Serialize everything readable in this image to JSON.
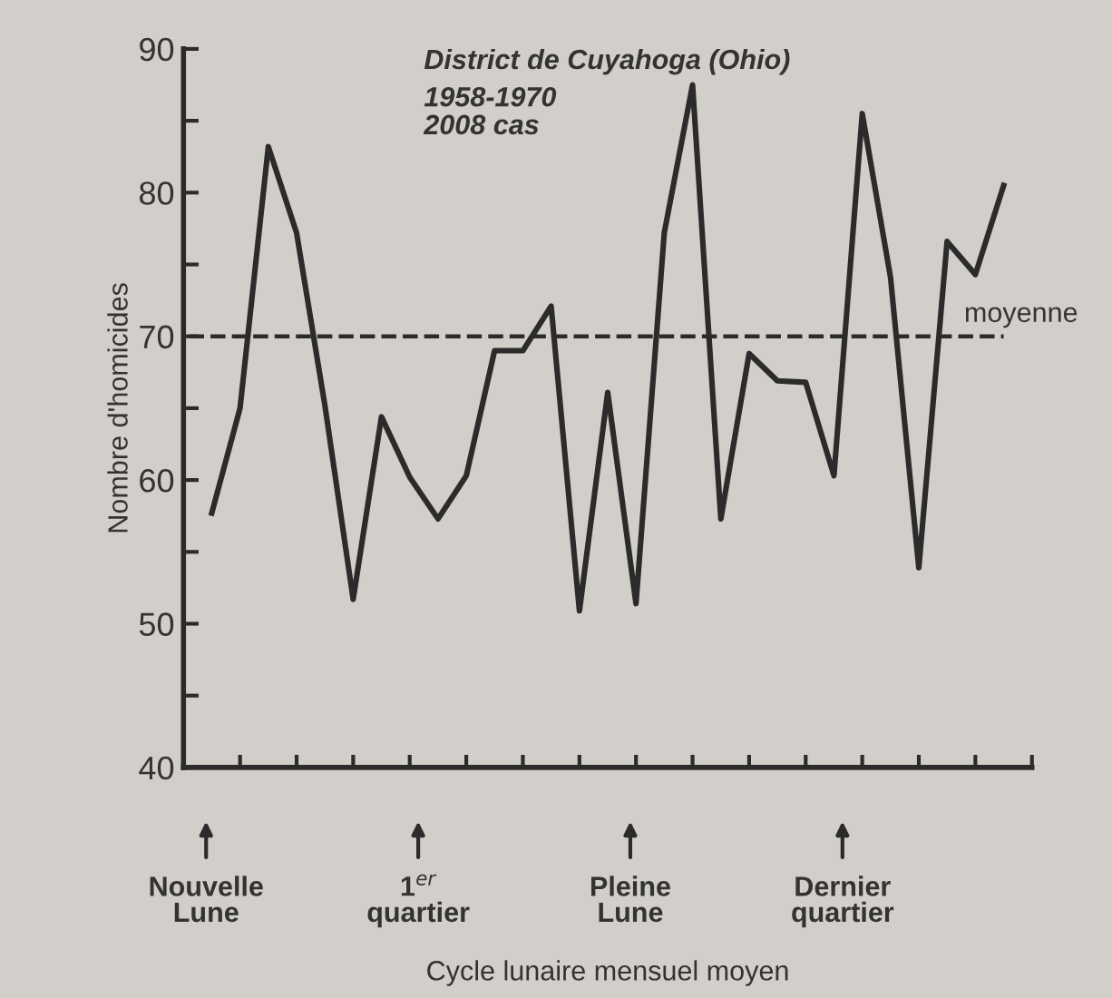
{
  "chart_data": {
    "type": "line",
    "title": "District de Cuyahoga (Ohio)",
    "subtitle": "1958-1970\n2008 cas",
    "ylabel": "Nombre d'homicides",
    "categories": [
      null,
      null,
      null,
      null,
      null,
      null,
      null,
      null,
      null,
      null,
      null,
      null,
      null,
      null,
      null,
      null,
      null,
      null,
      null,
      null,
      null,
      null,
      null,
      null,
      null,
      null,
      null,
      null,
      null
    ],
    "series": [
      {
        "color": "#2b2b2b",
        "values": [
          57.7,
          65,
          83.2,
          77.2,
          65.2,
          51.7,
          64.4,
          60.2,
          57.3,
          60.3,
          69,
          69,
          72.1,
          50.9,
          66.1,
          51.4,
          77.2,
          87.5,
          57.3,
          68.8,
          66.9,
          66.8,
          60.3,
          85.5,
          74.1,
          53.9,
          76.6,
          74.3,
          80.5
        ]
      }
    ],
    "ylim": [
      40,
      90
    ],
    "yticks": [
      40,
      {
        "value": 45,
        "label": null
      },
      50,
      {
        "value": 55,
        "label": null
      },
      60,
      {
        "value": 65,
        "label": null
      },
      70,
      {
        "value": 75,
        "label": null
      },
      80,
      {
        "value": 85,
        "label": null
      },
      90
    ],
    "ref_lines": [
      {
        "axis": "y",
        "value": 70,
        "label": "moyenne",
        "color": "#2b2b2b",
        "line_style": "dashed"
      }
    ],
    "annotations": [
      "Nouvelle\nLune",
      "1$^{er}$\nquartier",
      "Pleine\nLune",
      "Dernier\nquartier",
      "Cycle lunaire mensuel moyen"
    ],
    "grid": false,
    "marker": "none",
    "line_style": "solid"
  }
}
